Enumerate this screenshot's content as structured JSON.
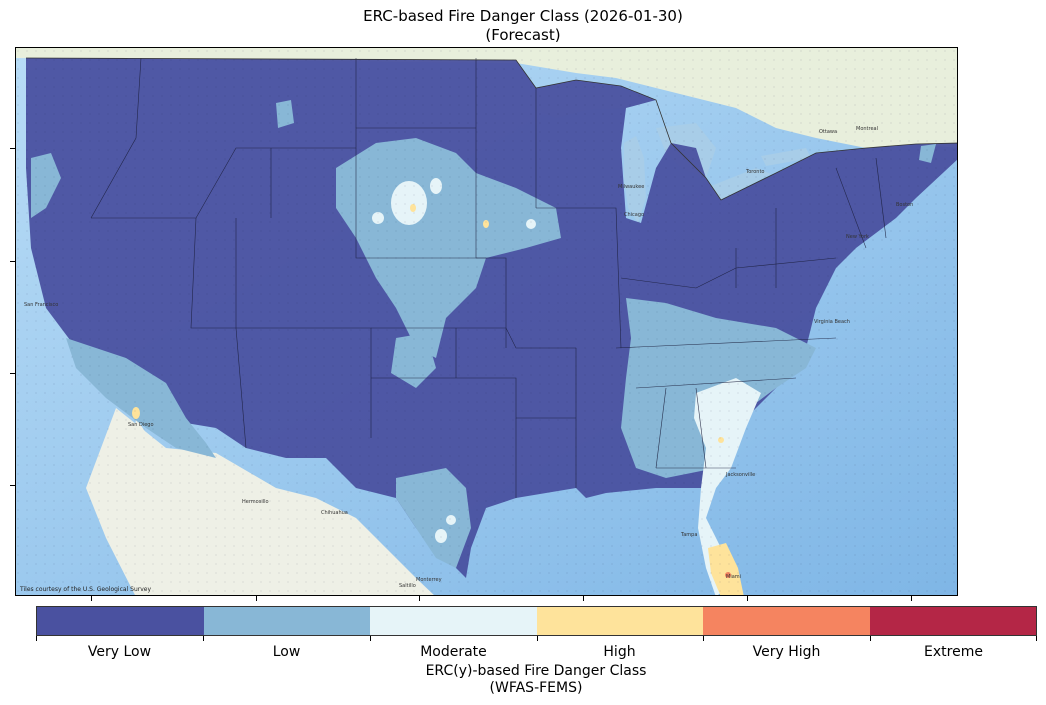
{
  "title": {
    "line1": "ERC-based Fire Danger Class (2026-01-30)",
    "line2": "(Forecast)"
  },
  "map": {
    "attribution": "Tiles courtesy of the U.S. Geological Survey",
    "place_labels": [
      {
        "key": "ottawa",
        "text": "Ottawa"
      },
      {
        "key": "montreal",
        "text": "Montreal"
      },
      {
        "key": "toronto",
        "text": "Toronto"
      },
      {
        "key": "milwaukee",
        "text": "Milwaukee"
      },
      {
        "key": "chicago",
        "text": "Chicago"
      },
      {
        "key": "boston",
        "text": "Boston"
      },
      {
        "key": "new_york",
        "text": "New York"
      },
      {
        "key": "virginia_beach",
        "text": "Virginia Beach"
      },
      {
        "key": "jacksonville",
        "text": "Jacksonville"
      },
      {
        "key": "tampa",
        "text": "Tampa"
      },
      {
        "key": "miami",
        "text": "Miami"
      },
      {
        "key": "san_francisco",
        "text": "San Francisco"
      },
      {
        "key": "san_diego",
        "text": "San Diego"
      },
      {
        "key": "hermosillo",
        "text": "Hermosillo"
      },
      {
        "key": "chihuahua",
        "text": "Chihuahua"
      },
      {
        "key": "monterrey",
        "text": "Monterrey"
      },
      {
        "key": "saltillo",
        "text": "Saltillo"
      }
    ]
  },
  "legend": {
    "title_line1": "ERC(y)-based Fire Danger Class",
    "title_line2": "(WFAS-FEMS)",
    "classes": [
      {
        "label": "Very Low",
        "color": "#4a51a0"
      },
      {
        "label": "Low",
        "color": "#88b7d6"
      },
      {
        "label": "Moderate",
        "color": "#e6f4f8"
      },
      {
        "label": "High",
        "color": "#fee39b"
      },
      {
        "label": "Very High",
        "color": "#f58460"
      },
      {
        "label": "Extreme",
        "color": "#b42646"
      }
    ]
  },
  "colors": {
    "ocean": "#9cc9ef",
    "land": "#eef2e6",
    "lake": "#a8cde8",
    "border": "#222222"
  }
}
